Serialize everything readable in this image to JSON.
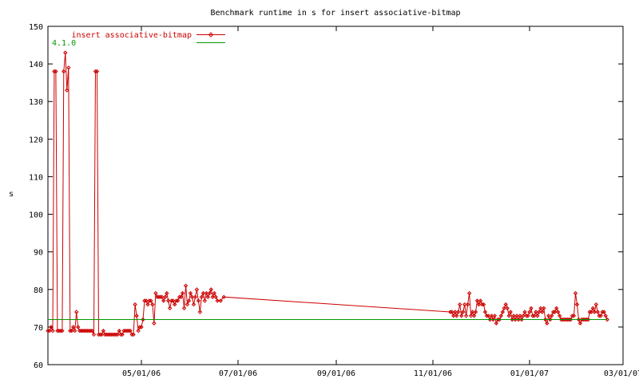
{
  "chart_data": {
    "type": "line",
    "title": "Benchmark runtime in s for insert associative-bitmap",
    "ylabel": "s",
    "xlabel": "",
    "ylim": [
      60,
      150
    ],
    "xlim": [
      "2006-03-03",
      "2007-03-01"
    ],
    "yticks": [
      60,
      70,
      80,
      90,
      100,
      110,
      120,
      130,
      140,
      150
    ],
    "xticks": [
      {
        "date": "2006-05-01",
        "label": "05/01/06"
      },
      {
        "date": "2006-07-01",
        "label": "07/01/06"
      },
      {
        "date": "2006-09-01",
        "label": "09/01/06"
      },
      {
        "date": "2006-11-01",
        "label": "11/01/06"
      },
      {
        "date": "2007-01-01",
        "label": "01/01/07"
      },
      {
        "date": "2007-03-01",
        "label": "03/01/07"
      }
    ],
    "legend_position": "top-left",
    "grid": false,
    "series": [
      {
        "name": "insert associative-bitmap",
        "color": "#cc0000",
        "markers": true,
        "points": [
          [
            "2006-03-03",
            69
          ],
          [
            "2006-03-04",
            69
          ],
          [
            "2006-03-05",
            70
          ],
          [
            "2006-03-06",
            69
          ],
          [
            "2006-03-07",
            138
          ],
          [
            "2006-03-08",
            138
          ],
          [
            "2006-03-09",
            69
          ],
          [
            "2006-03-10",
            69
          ],
          [
            "2006-03-11",
            69
          ],
          [
            "2006-03-12",
            69
          ],
          [
            "2006-03-13",
            138
          ],
          [
            "2006-03-14",
            143
          ],
          [
            "2006-03-15",
            133
          ],
          [
            "2006-03-16",
            139
          ],
          [
            "2006-03-17",
            69
          ],
          [
            "2006-03-18",
            69
          ],
          [
            "2006-03-19",
            70
          ],
          [
            "2006-03-20",
            69
          ],
          [
            "2006-03-21",
            74
          ],
          [
            "2006-03-22",
            70
          ],
          [
            "2006-03-23",
            69
          ],
          [
            "2006-03-24",
            69
          ],
          [
            "2006-03-25",
            69
          ],
          [
            "2006-03-26",
            69
          ],
          [
            "2006-03-27",
            69
          ],
          [
            "2006-03-28",
            69
          ],
          [
            "2006-03-29",
            69
          ],
          [
            "2006-03-30",
            69
          ],
          [
            "2006-03-31",
            69
          ],
          [
            "2006-04-01",
            68
          ],
          [
            "2006-04-02",
            138
          ],
          [
            "2006-04-03",
            138
          ],
          [
            "2006-04-04",
            68
          ],
          [
            "2006-04-05",
            68
          ],
          [
            "2006-04-06",
            68
          ],
          [
            "2006-04-07",
            69
          ],
          [
            "2006-04-08",
            68
          ],
          [
            "2006-04-09",
            68
          ],
          [
            "2006-04-10",
            68
          ],
          [
            "2006-04-11",
            68
          ],
          [
            "2006-04-12",
            68
          ],
          [
            "2006-04-13",
            68
          ],
          [
            "2006-04-14",
            68
          ],
          [
            "2006-04-15",
            68
          ],
          [
            "2006-04-16",
            68
          ],
          [
            "2006-04-17",
            69
          ],
          [
            "2006-04-18",
            68
          ],
          [
            "2006-04-19",
            68
          ],
          [
            "2006-04-20",
            69
          ],
          [
            "2006-04-21",
            69
          ],
          [
            "2006-04-22",
            69
          ],
          [
            "2006-04-23",
            69
          ],
          [
            "2006-04-24",
            69
          ],
          [
            "2006-04-25",
            68
          ],
          [
            "2006-04-26",
            68
          ],
          [
            "2006-04-27",
            76
          ],
          [
            "2006-04-28",
            73
          ],
          [
            "2006-04-29",
            69
          ],
          [
            "2006-04-30",
            70
          ],
          [
            "2006-05-01",
            70
          ],
          [
            "2006-05-02",
            72
          ],
          [
            "2006-05-03",
            77
          ],
          [
            "2006-05-04",
            77
          ],
          [
            "2006-05-05",
            76
          ],
          [
            "2006-05-06",
            77
          ],
          [
            "2006-05-07",
            77
          ],
          [
            "2006-05-08",
            76
          ],
          [
            "2006-05-09",
            71
          ],
          [
            "2006-05-10",
            79
          ],
          [
            "2006-05-11",
            78
          ],
          [
            "2006-05-12",
            78
          ],
          [
            "2006-05-13",
            78
          ],
          [
            "2006-05-14",
            78
          ],
          [
            "2006-05-15",
            77
          ],
          [
            "2006-05-16",
            78
          ],
          [
            "2006-05-17",
            79
          ],
          [
            "2006-05-18",
            77
          ],
          [
            "2006-05-19",
            75
          ],
          [
            "2006-05-20",
            77
          ],
          [
            "2006-05-21",
            77
          ],
          [
            "2006-05-22",
            76
          ],
          [
            "2006-05-23",
            77
          ],
          [
            "2006-05-24",
            77
          ],
          [
            "2006-05-25",
            78
          ],
          [
            "2006-05-26",
            78
          ],
          [
            "2006-05-27",
            79
          ],
          [
            "2006-05-28",
            75
          ],
          [
            "2006-05-29",
            81
          ],
          [
            "2006-05-30",
            76
          ],
          [
            "2006-05-31",
            77
          ],
          [
            "2006-06-01",
            79
          ],
          [
            "2006-06-02",
            78
          ],
          [
            "2006-06-03",
            76
          ],
          [
            "2006-06-04",
            78
          ],
          [
            "2006-06-05",
            80
          ],
          [
            "2006-06-06",
            77
          ],
          [
            "2006-06-07",
            74
          ],
          [
            "2006-06-08",
            78
          ],
          [
            "2006-06-09",
            79
          ],
          [
            "2006-06-10",
            77
          ],
          [
            "2006-06-11",
            79
          ],
          [
            "2006-06-12",
            78
          ],
          [
            "2006-06-13",
            79
          ],
          [
            "2006-06-14",
            80
          ],
          [
            "2006-06-15",
            78
          ],
          [
            "2006-06-16",
            79
          ],
          [
            "2006-06-17",
            78
          ],
          [
            "2006-06-18",
            77
          ],
          [
            "2006-06-20",
            77
          ],
          [
            "2006-06-22",
            78
          ],
          [
            "2006-11-12",
            74
          ],
          [
            "2006-11-13",
            74
          ],
          [
            "2006-11-14",
            73
          ],
          [
            "2006-11-15",
            74
          ],
          [
            "2006-11-16",
            73
          ],
          [
            "2006-11-17",
            74
          ],
          [
            "2006-11-18",
            76
          ],
          [
            "2006-11-19",
            73
          ],
          [
            "2006-11-20",
            74
          ],
          [
            "2006-11-21",
            76
          ],
          [
            "2006-11-22",
            73
          ],
          [
            "2006-11-23",
            76
          ],
          [
            "2006-11-24",
            79
          ],
          [
            "2006-11-25",
            73
          ],
          [
            "2006-11-26",
            74
          ],
          [
            "2006-11-27",
            73
          ],
          [
            "2006-11-28",
            74
          ],
          [
            "2006-11-29",
            77
          ],
          [
            "2006-11-30",
            76
          ],
          [
            "2006-12-01",
            77
          ],
          [
            "2006-12-02",
            76
          ],
          [
            "2006-12-03",
            76
          ],
          [
            "2006-12-04",
            74
          ],
          [
            "2006-12-05",
            73
          ],
          [
            "2006-12-06",
            73
          ],
          [
            "2006-12-07",
            72
          ],
          [
            "2006-12-08",
            73
          ],
          [
            "2006-12-09",
            72
          ],
          [
            "2006-12-10",
            73
          ],
          [
            "2006-12-11",
            71
          ],
          [
            "2006-12-12",
            72
          ],
          [
            "2006-12-13",
            72
          ],
          [
            "2006-12-14",
            73
          ],
          [
            "2006-12-15",
            74
          ],
          [
            "2006-12-16",
            75
          ],
          [
            "2006-12-17",
            76
          ],
          [
            "2006-12-18",
            75
          ],
          [
            "2006-12-19",
            73
          ],
          [
            "2006-12-20",
            74
          ],
          [
            "2006-12-21",
            72
          ],
          [
            "2006-12-22",
            73
          ],
          [
            "2006-12-23",
            72
          ],
          [
            "2006-12-24",
            73
          ],
          [
            "2006-12-25",
            72
          ],
          [
            "2006-12-26",
            73
          ],
          [
            "2006-12-27",
            72
          ],
          [
            "2006-12-28",
            73
          ],
          [
            "2006-12-29",
            74
          ],
          [
            "2006-12-30",
            73
          ],
          [
            "2006-12-31",
            73
          ],
          [
            "2007-01-01",
            74
          ],
          [
            "2007-01-02",
            75
          ],
          [
            "2007-01-03",
            73
          ],
          [
            "2007-01-04",
            73
          ],
          [
            "2007-01-05",
            74
          ],
          [
            "2007-01-06",
            73
          ],
          [
            "2007-01-07",
            74
          ],
          [
            "2007-01-08",
            75
          ],
          [
            "2007-01-09",
            74
          ],
          [
            "2007-01-10",
            75
          ],
          [
            "2007-01-11",
            72
          ],
          [
            "2007-01-12",
            71
          ],
          [
            "2007-01-13",
            73
          ],
          [
            "2007-01-14",
            72
          ],
          [
            "2007-01-15",
            73
          ],
          [
            "2007-01-16",
            74
          ],
          [
            "2007-01-17",
            74
          ],
          [
            "2007-01-18",
            75
          ],
          [
            "2007-01-19",
            74
          ],
          [
            "2007-01-20",
            73
          ],
          [
            "2007-01-21",
            72
          ],
          [
            "2007-01-22",
            72
          ],
          [
            "2007-01-23",
            72
          ],
          [
            "2007-01-24",
            72
          ],
          [
            "2007-01-25",
            72
          ],
          [
            "2007-01-26",
            72
          ],
          [
            "2007-01-27",
            72
          ],
          [
            "2007-01-28",
            73
          ],
          [
            "2007-01-29",
            73
          ],
          [
            "2007-01-30",
            79
          ],
          [
            "2007-01-31",
            76
          ],
          [
            "2007-02-01",
            72
          ],
          [
            "2007-02-02",
            71
          ],
          [
            "2007-02-03",
            72
          ],
          [
            "2007-02-04",
            72
          ],
          [
            "2007-02-05",
            72
          ],
          [
            "2007-02-06",
            72
          ],
          [
            "2007-02-07",
            72
          ],
          [
            "2007-02-08",
            74
          ],
          [
            "2007-02-09",
            74
          ],
          [
            "2007-02-10",
            75
          ],
          [
            "2007-02-11",
            74
          ],
          [
            "2007-02-12",
            76
          ],
          [
            "2007-02-13",
            74
          ],
          [
            "2007-02-14",
            73
          ],
          [
            "2007-02-15",
            73
          ],
          [
            "2007-02-16",
            74
          ],
          [
            "2007-02-17",
            74
          ],
          [
            "2007-02-18",
            73
          ],
          [
            "2007-02-19",
            72
          ]
        ]
      },
      {
        "name": "4.1.0",
        "color": "#009900",
        "markers": false,
        "points": [
          [
            "2006-03-03",
            72
          ],
          [
            "2007-02-19",
            72
          ]
        ]
      }
    ]
  }
}
